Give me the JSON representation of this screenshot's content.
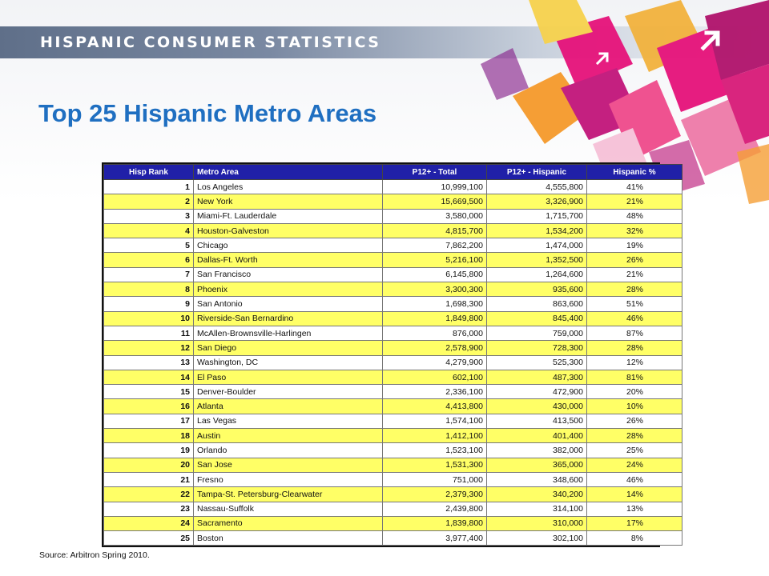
{
  "header": {
    "title": "HISPANIC CONSUMER STATISTICS"
  },
  "slide": {
    "title": "Top 25 Hispanic Metro Areas"
  },
  "table": {
    "headers": [
      "Hisp Rank",
      "Metro Area",
      "P12+ - Total",
      "P12+ - Hispanic",
      "Hispanic %"
    ],
    "rows": [
      [
        "1",
        "Los Angeles",
        "10,999,100",
        "4,555,800",
        "41%"
      ],
      [
        "2",
        "New York",
        "15,669,500",
        "3,326,900",
        "21%"
      ],
      [
        "3",
        "Miami-Ft. Lauderdale",
        "3,580,000",
        "1,715,700",
        "48%"
      ],
      [
        "4",
        "Houston-Galveston",
        "4,815,700",
        "1,534,200",
        "32%"
      ],
      [
        "5",
        "Chicago",
        "7,862,200",
        "1,474,000",
        "19%"
      ],
      [
        "6",
        "Dallas-Ft. Worth",
        "5,216,100",
        "1,352,500",
        "26%"
      ],
      [
        "7",
        "San Francisco",
        "6,145,800",
        "1,264,600",
        "21%"
      ],
      [
        "8",
        "Phoenix",
        "3,300,300",
        "935,600",
        "28%"
      ],
      [
        "9",
        "San Antonio",
        "1,698,300",
        "863,600",
        "51%"
      ],
      [
        "10",
        "Riverside-San Bernardino",
        "1,849,800",
        "845,400",
        "46%"
      ],
      [
        "11",
        "McAllen-Brownsville-Harlingen",
        "876,000",
        "759,000",
        "87%"
      ],
      [
        "12",
        "San Diego",
        "2,578,900",
        "728,300",
        "28%"
      ],
      [
        "13",
        "Washington, DC",
        "4,279,900",
        "525,300",
        "12%"
      ],
      [
        "14",
        "El Paso",
        "602,100",
        "487,300",
        "81%"
      ],
      [
        "15",
        "Denver-Boulder",
        "2,336,100",
        "472,900",
        "20%"
      ],
      [
        "16",
        "Atlanta",
        "4,413,800",
        "430,000",
        "10%"
      ],
      [
        "17",
        "Las Vegas",
        "1,574,100",
        "413,500",
        "26%"
      ],
      [
        "18",
        "Austin",
        "1,412,100",
        "401,400",
        "28%"
      ],
      [
        "19",
        "Orlando",
        "1,523,100",
        "382,000",
        "25%"
      ],
      [
        "20",
        "San Jose",
        "1,531,300",
        "365,000",
        "24%"
      ],
      [
        "21",
        "Fresno",
        "751,000",
        "348,600",
        "46%"
      ],
      [
        "22",
        "Tampa-St. Petersburg-Clearwater",
        "2,379,300",
        "340,200",
        "14%"
      ],
      [
        "23",
        "Nassau-Suffolk",
        "2,439,800",
        "314,100",
        "13%"
      ],
      [
        "24",
        "Sacramento",
        "1,839,800",
        "310,000",
        "17%"
      ],
      [
        "25",
        "Boston",
        "3,977,400",
        "302,100",
        "8%"
      ]
    ]
  },
  "footer": {
    "source": "Source: Arbitron Spring 2010."
  },
  "colors": {
    "title": "#1f6fc1",
    "header_row": "#2020a8",
    "row_highlight": "#ffff66",
    "art_magenta": "#e6127a",
    "art_orange": "#f59a2b",
    "art_purple": "#8a2a8f"
  },
  "icons": [
    "arrow-northeast-icon",
    "arrow-northeast-icon"
  ]
}
